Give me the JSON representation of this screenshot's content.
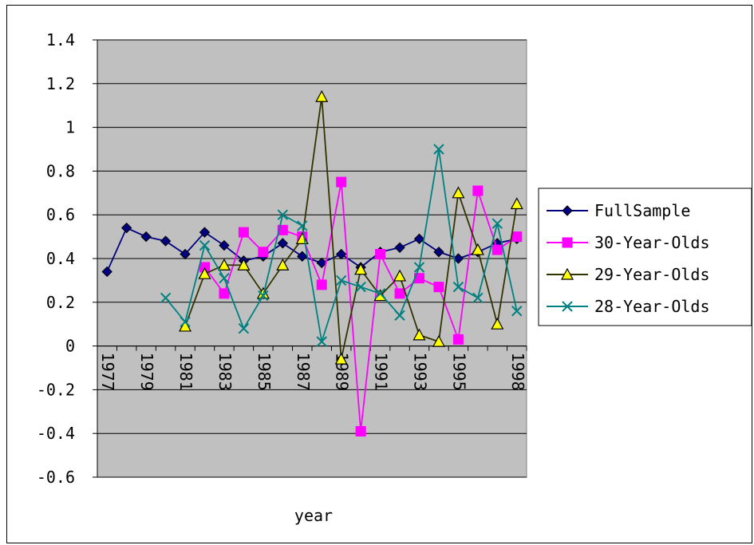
{
  "chart_data": {
    "type": "line",
    "title": "",
    "xlabel": "year",
    "ylabel": "",
    "ylim": [
      -0.6,
      1.4
    ],
    "ytick_step": 0.2,
    "ytick_labels": [
      "-0.6",
      "-0.4",
      "-0.2",
      "0",
      "0.2",
      "0.4",
      "0.6",
      "0.8",
      "1",
      "1.2",
      "1.4"
    ],
    "grid": true,
    "plot_background": "#c0c0c0",
    "legend_position": "right",
    "categories": [
      "1977",
      "1978",
      "1979",
      "1980",
      "1981",
      "1982",
      "1983",
      "1984",
      "1985",
      "1986",
      "1987",
      "1988",
      "1989",
      "1990",
      "1991",
      "1992",
      "1993",
      "1994",
      "1995",
      "1996",
      "1997",
      "1998"
    ],
    "category_tick_labels": [
      "1977",
      "1979",
      "1981",
      "1983",
      "1985",
      "1987",
      "1989",
      "1991",
      "1993",
      "1995",
      "1998"
    ],
    "series": [
      {
        "name": "FullSample",
        "color": "#000080",
        "marker": "diamond",
        "values": [
          0.34,
          0.54,
          0.5,
          0.48,
          0.42,
          0.52,
          0.46,
          0.39,
          0.41,
          0.47,
          0.41,
          0.38,
          0.42,
          0.36,
          0.43,
          0.45,
          0.49,
          0.43,
          0.4,
          0.43,
          0.47,
          0.49
        ]
      },
      {
        "name": "30-Year-Olds",
        "color": "#ff00ff",
        "marker": "square",
        "values": [
          null,
          null,
          null,
          null,
          null,
          0.36,
          0.24,
          0.52,
          0.43,
          0.53,
          0.5,
          0.28,
          0.75,
          -0.39,
          0.42,
          0.24,
          0.31,
          0.27,
          0.03,
          0.71,
          0.44,
          0.5
        ]
      },
      {
        "name": "29-Year-Olds",
        "color": "#333300",
        "marker": "triangle",
        "fill": "#ffff00",
        "values": [
          null,
          null,
          null,
          null,
          0.09,
          0.33,
          0.37,
          0.37,
          0.24,
          0.37,
          0.49,
          1.14,
          -0.06,
          0.35,
          0.23,
          0.32,
          0.05,
          0.02,
          0.7,
          0.44,
          0.1,
          0.65
        ]
      },
      {
        "name": "28-Year-Olds",
        "color": "#008080",
        "marker": "x",
        "values": [
          null,
          null,
          null,
          0.22,
          0.11,
          0.46,
          0.31,
          0.08,
          0.23,
          0.6,
          0.55,
          0.02,
          0.3,
          0.27,
          0.24,
          0.14,
          0.36,
          0.9,
          0.27,
          0.22,
          0.56,
          0.16
        ]
      }
    ]
  }
}
